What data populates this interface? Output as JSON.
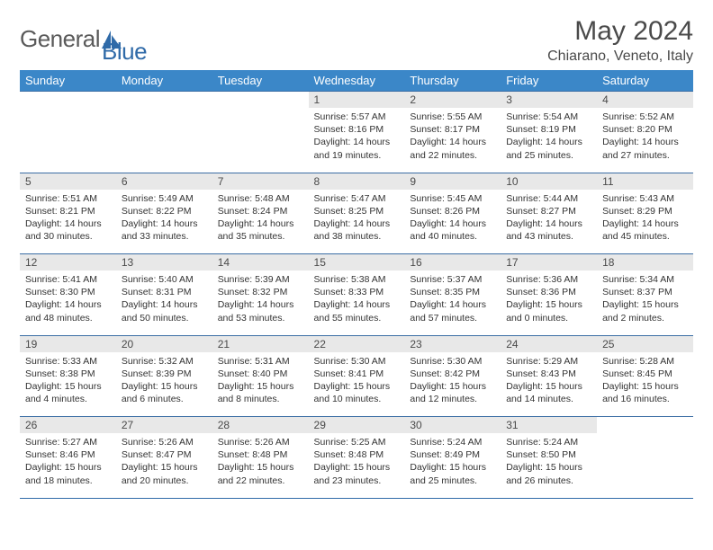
{
  "logo": {
    "text1": "General",
    "text2": "Blue"
  },
  "title": "May 2024",
  "location": "Chiarano, Veneto, Italy",
  "colors": {
    "header_bg": "#3b87c8",
    "header_text": "#ffffff",
    "daynum_bg": "#e8e8e8",
    "border": "#2f6aa8",
    "logo_gray": "#5a5a5a",
    "logo_blue": "#2f6aa8"
  },
  "day_headers": [
    "Sunday",
    "Monday",
    "Tuesday",
    "Wednesday",
    "Thursday",
    "Friday",
    "Saturday"
  ],
  "weeks": [
    [
      null,
      null,
      null,
      {
        "n": "1",
        "sr": "5:57 AM",
        "ss": "8:16 PM",
        "dl": "14 hours and 19 minutes."
      },
      {
        "n": "2",
        "sr": "5:55 AM",
        "ss": "8:17 PM",
        "dl": "14 hours and 22 minutes."
      },
      {
        "n": "3",
        "sr": "5:54 AM",
        "ss": "8:19 PM",
        "dl": "14 hours and 25 minutes."
      },
      {
        "n": "4",
        "sr": "5:52 AM",
        "ss": "8:20 PM",
        "dl": "14 hours and 27 minutes."
      }
    ],
    [
      {
        "n": "5",
        "sr": "5:51 AM",
        "ss": "8:21 PM",
        "dl": "14 hours and 30 minutes."
      },
      {
        "n": "6",
        "sr": "5:49 AM",
        "ss": "8:22 PM",
        "dl": "14 hours and 33 minutes."
      },
      {
        "n": "7",
        "sr": "5:48 AM",
        "ss": "8:24 PM",
        "dl": "14 hours and 35 minutes."
      },
      {
        "n": "8",
        "sr": "5:47 AM",
        "ss": "8:25 PM",
        "dl": "14 hours and 38 minutes."
      },
      {
        "n": "9",
        "sr": "5:45 AM",
        "ss": "8:26 PM",
        "dl": "14 hours and 40 minutes."
      },
      {
        "n": "10",
        "sr": "5:44 AM",
        "ss": "8:27 PM",
        "dl": "14 hours and 43 minutes."
      },
      {
        "n": "11",
        "sr": "5:43 AM",
        "ss": "8:29 PM",
        "dl": "14 hours and 45 minutes."
      }
    ],
    [
      {
        "n": "12",
        "sr": "5:41 AM",
        "ss": "8:30 PM",
        "dl": "14 hours and 48 minutes."
      },
      {
        "n": "13",
        "sr": "5:40 AM",
        "ss": "8:31 PM",
        "dl": "14 hours and 50 minutes."
      },
      {
        "n": "14",
        "sr": "5:39 AM",
        "ss": "8:32 PM",
        "dl": "14 hours and 53 minutes."
      },
      {
        "n": "15",
        "sr": "5:38 AM",
        "ss": "8:33 PM",
        "dl": "14 hours and 55 minutes."
      },
      {
        "n": "16",
        "sr": "5:37 AM",
        "ss": "8:35 PM",
        "dl": "14 hours and 57 minutes."
      },
      {
        "n": "17",
        "sr": "5:36 AM",
        "ss": "8:36 PM",
        "dl": "15 hours and 0 minutes."
      },
      {
        "n": "18",
        "sr": "5:34 AM",
        "ss": "8:37 PM",
        "dl": "15 hours and 2 minutes."
      }
    ],
    [
      {
        "n": "19",
        "sr": "5:33 AM",
        "ss": "8:38 PM",
        "dl": "15 hours and 4 minutes."
      },
      {
        "n": "20",
        "sr": "5:32 AM",
        "ss": "8:39 PM",
        "dl": "15 hours and 6 minutes."
      },
      {
        "n": "21",
        "sr": "5:31 AM",
        "ss": "8:40 PM",
        "dl": "15 hours and 8 minutes."
      },
      {
        "n": "22",
        "sr": "5:30 AM",
        "ss": "8:41 PM",
        "dl": "15 hours and 10 minutes."
      },
      {
        "n": "23",
        "sr": "5:30 AM",
        "ss": "8:42 PM",
        "dl": "15 hours and 12 minutes."
      },
      {
        "n": "24",
        "sr": "5:29 AM",
        "ss": "8:43 PM",
        "dl": "15 hours and 14 minutes."
      },
      {
        "n": "25",
        "sr": "5:28 AM",
        "ss": "8:45 PM",
        "dl": "15 hours and 16 minutes."
      }
    ],
    [
      {
        "n": "26",
        "sr": "5:27 AM",
        "ss": "8:46 PM",
        "dl": "15 hours and 18 minutes."
      },
      {
        "n": "27",
        "sr": "5:26 AM",
        "ss": "8:47 PM",
        "dl": "15 hours and 20 minutes."
      },
      {
        "n": "28",
        "sr": "5:26 AM",
        "ss": "8:48 PM",
        "dl": "15 hours and 22 minutes."
      },
      {
        "n": "29",
        "sr": "5:25 AM",
        "ss": "8:48 PM",
        "dl": "15 hours and 23 minutes."
      },
      {
        "n": "30",
        "sr": "5:24 AM",
        "ss": "8:49 PM",
        "dl": "15 hours and 25 minutes."
      },
      {
        "n": "31",
        "sr": "5:24 AM",
        "ss": "8:50 PM",
        "dl": "15 hours and 26 minutes."
      },
      null
    ]
  ],
  "labels": {
    "sunrise": "Sunrise:",
    "sunset": "Sunset:",
    "daylight": "Daylight:"
  }
}
